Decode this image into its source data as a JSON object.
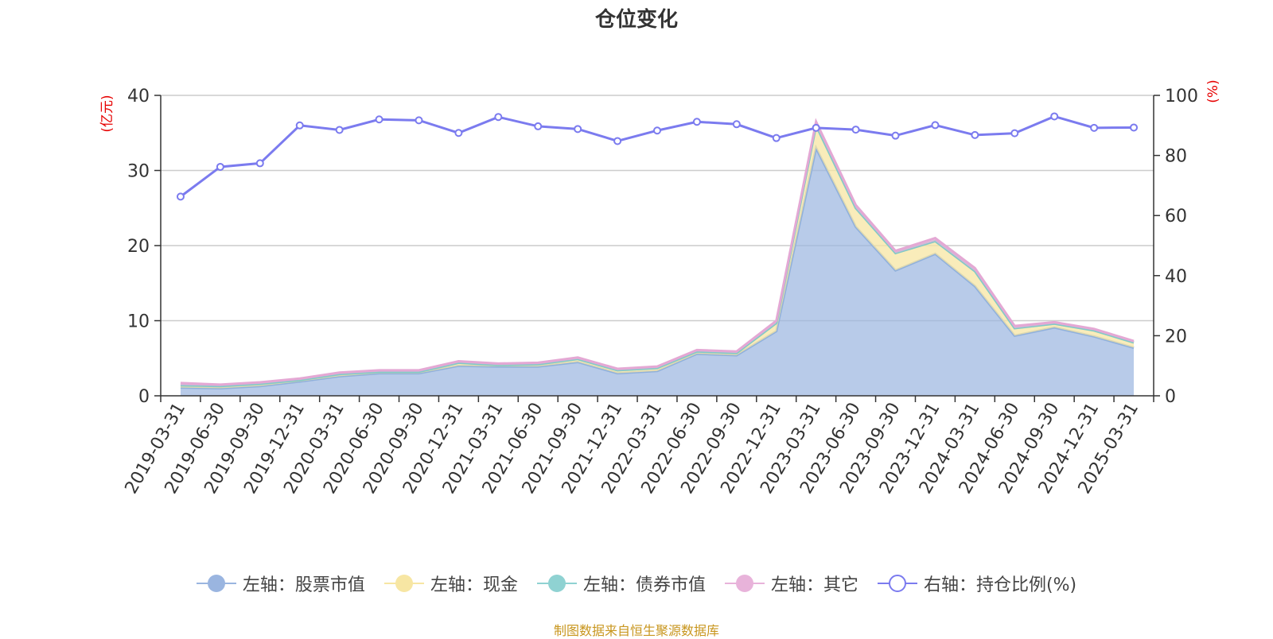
{
  "chart_data": {
    "type": "area",
    "title": "仓位变化",
    "y_left_label": "(亿元)",
    "y_right_label": "(%)",
    "y_left_range": [
      0,
      40
    ],
    "y_right_range": [
      0,
      100
    ],
    "y_left_ticks": [
      "0",
      "10",
      "20",
      "30",
      "40"
    ],
    "y_right_ticks": [
      "0",
      "20",
      "40",
      "60",
      "80",
      "100"
    ],
    "categories": [
      "2019-03-31",
      "2019-06-30",
      "2019-09-30",
      "2019-12-31",
      "2020-03-31",
      "2020-06-30",
      "2020-09-30",
      "2020-12-31",
      "2021-03-31",
      "2021-06-30",
      "2021-09-30",
      "2021-12-31",
      "2022-03-31",
      "2022-06-30",
      "2022-09-30",
      "2022-12-31",
      "2023-03-31",
      "2023-06-30",
      "2023-09-30",
      "2023-12-31",
      "2024-03-31",
      "2024-06-30",
      "2024-09-30",
      "2024-12-31",
      "2025-03-31"
    ],
    "grid": true,
    "legend_position": "bottom",
    "series": [
      {
        "name": "左轴：股票市值",
        "axis": "left",
        "kind": "stacked-area",
        "values": [
          1.1,
          1.0,
          1.3,
          1.9,
          2.6,
          3.0,
          3.0,
          4.0,
          3.9,
          3.9,
          4.5,
          3.0,
          3.3,
          5.6,
          5.4,
          8.6,
          33.0,
          22.5,
          16.7,
          18.9,
          14.6,
          8.0,
          9.1,
          7.9,
          6.4
        ]
      },
      {
        "name": "左轴：现金",
        "axis": "left",
        "kind": "stacked-area",
        "values": [
          0.3,
          0.3,
          0.3,
          0.2,
          0.3,
          0.2,
          0.2,
          0.4,
          0.2,
          0.3,
          0.4,
          0.4,
          0.4,
          0.3,
          0.3,
          1.1,
          3.0,
          2.5,
          2.3,
          1.7,
          2.0,
          1.0,
          0.5,
          0.8,
          0.7
        ]
      },
      {
        "name": "左轴：债券市值",
        "axis": "left",
        "kind": "stacked-area",
        "values": [
          0,
          0,
          0,
          0,
          0,
          0,
          0,
          0,
          0,
          0,
          0,
          0,
          0,
          0,
          0,
          0,
          0,
          0,
          0,
          0,
          0,
          0,
          0,
          0,
          0
        ]
      },
      {
        "name": "左轴：其它",
        "axis": "left",
        "kind": "stacked-area",
        "values": [
          0.3,
          0.2,
          0.2,
          0.2,
          0.2,
          0.2,
          0.2,
          0.2,
          0.2,
          0.2,
          0.2,
          0.2,
          0.2,
          0.2,
          0.2,
          0.3,
          0.5,
          0.4,
          0.3,
          0.4,
          0.4,
          0.3,
          0.2,
          0.2,
          0.2
        ]
      },
      {
        "name": "右轴：持仓比例(%)",
        "axis": "right",
        "kind": "line",
        "values": [
          66.3,
          76.2,
          77.4,
          90.0,
          88.5,
          92.0,
          91.7,
          87.5,
          92.8,
          89.7,
          88.8,
          84.8,
          88.3,
          91.2,
          90.4,
          85.8,
          89.2,
          88.6,
          86.6,
          90.1,
          86.8,
          87.4,
          93.0,
          89.2,
          89.3
        ]
      }
    ],
    "colors": {
      "stock": "#9ab5e0",
      "cash": "#f7e6a3",
      "bond": "#8fd2d2",
      "other": "#e8b3da",
      "ratio": "#7b7bef",
      "axis_label": "#e60000",
      "grid": "#cccccc",
      "axis": "#333333"
    }
  },
  "legend": {
    "items": [
      {
        "label": "左轴：股票市值",
        "icon": "filled-circle",
        "color": "#9ab5e0"
      },
      {
        "label": "左轴：现金",
        "icon": "filled-circle",
        "color": "#f7e6a3"
      },
      {
        "label": "左轴：债券市值",
        "icon": "filled-circle",
        "color": "#8fd2d2"
      },
      {
        "label": "左轴：其它",
        "icon": "filled-circle",
        "color": "#e8b3da"
      },
      {
        "label": "右轴：持仓比例(%)",
        "icon": "hollow-circle",
        "color": "#7b7bef"
      }
    ]
  },
  "source_note": "制图数据来自恒生聚源数据库"
}
